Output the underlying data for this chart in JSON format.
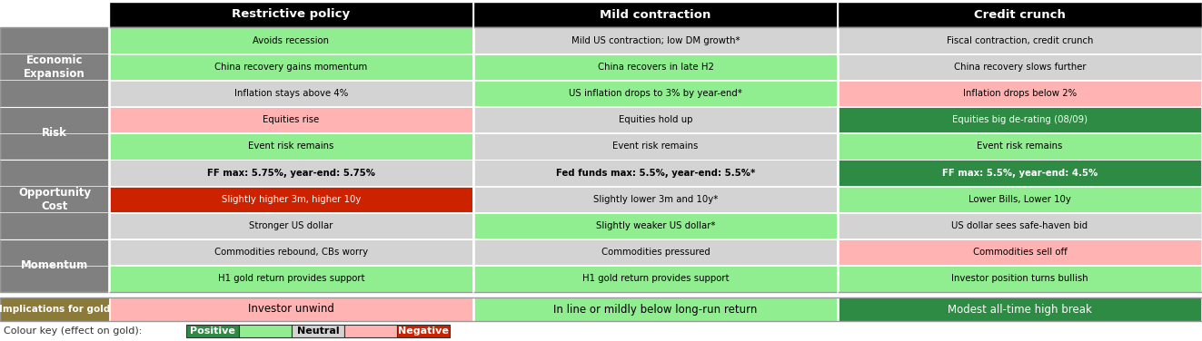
{
  "col_headers": [
    "Restrictive policy",
    "Mild contraction",
    "Credit crunch"
  ],
  "row_labels": [
    "Economic Expansion",
    "Risk",
    "Opportunity Cost",
    "Momentum"
  ],
  "implications_label": "Implications for gold",
  "cells": [
    [
      {
        "text": "Avoids recession",
        "color": "#90ee90",
        "bold": false,
        "tc": "#000000"
      },
      {
        "text": "China recovery gains momentum",
        "color": "#90ee90",
        "bold": false,
        "tc": "#000000"
      },
      {
        "text": "Inflation stays above 4%",
        "color": "#d3d3d3",
        "bold": false,
        "tc": "#000000"
      },
      {
        "text": "Equities rise",
        "color": "#ffb3b3",
        "bold": false,
        "tc": "#000000"
      },
      {
        "text": "Event risk remains",
        "color": "#90ee90",
        "bold": false,
        "tc": "#000000"
      },
      {
        "text": "FF max: 5.75%, year-end: 5.75%",
        "color": "#d3d3d3",
        "bold": true,
        "tc": "#000000"
      },
      {
        "text": "Slightly higher 3m, higher 10y",
        "color": "#cc2200",
        "bold": false,
        "tc": "#ffffff"
      },
      {
        "text": "Stronger US dollar",
        "color": "#d3d3d3",
        "bold": false,
        "tc": "#000000"
      },
      {
        "text": "Commodities rebound, CBs worry",
        "color": "#d3d3d3",
        "bold": false,
        "tc": "#000000"
      },
      {
        "text": "H1 gold return provides support",
        "color": "#90ee90",
        "bold": false,
        "tc": "#000000"
      }
    ],
    [
      {
        "text": "Mild US contraction; low DM growth*",
        "color": "#d3d3d3",
        "bold": false,
        "tc": "#000000"
      },
      {
        "text": "China recovers in late H2",
        "color": "#90ee90",
        "bold": false,
        "tc": "#000000"
      },
      {
        "text": "US inflation drops to 3% by year-end*",
        "color": "#90ee90",
        "bold": false,
        "tc": "#000000"
      },
      {
        "text": "Equities hold up",
        "color": "#d3d3d3",
        "bold": false,
        "tc": "#000000"
      },
      {
        "text": "Event risk remains",
        "color": "#d3d3d3",
        "bold": false,
        "tc": "#000000"
      },
      {
        "text": "Fed funds max: 5.5%, year-end: 5.5%*",
        "color": "#d3d3d3",
        "bold": true,
        "tc": "#000000"
      },
      {
        "text": "Slightly lower 3m and 10y*",
        "color": "#d3d3d3",
        "bold": false,
        "tc": "#000000"
      },
      {
        "text": "Slightly weaker US dollar*",
        "color": "#90ee90",
        "bold": false,
        "tc": "#000000"
      },
      {
        "text": "Commodities pressured",
        "color": "#d3d3d3",
        "bold": false,
        "tc": "#000000"
      },
      {
        "text": "H1 gold return provides support",
        "color": "#90ee90",
        "bold": false,
        "tc": "#000000"
      }
    ],
    [
      {
        "text": "Fiscal contraction, credit crunch",
        "color": "#d3d3d3",
        "bold": false,
        "tc": "#000000"
      },
      {
        "text": "China recovery slows further",
        "color": "#d3d3d3",
        "bold": false,
        "tc": "#000000"
      },
      {
        "text": "Inflation drops below 2%",
        "color": "#ffb3b3",
        "bold": false,
        "tc": "#000000"
      },
      {
        "text": "Equities big de-rating (08/09)",
        "color": "#2e8b44",
        "bold": false,
        "tc": "#ffffff"
      },
      {
        "text": "Event risk remains",
        "color": "#90ee90",
        "bold": false,
        "tc": "#000000"
      },
      {
        "text": "FF max: 5.5%, year-end: 4.5%",
        "color": "#2e8b44",
        "bold": true,
        "tc": "#ffffff"
      },
      {
        "text": "Lower Bills, Lower 10y",
        "color": "#90ee90",
        "bold": false,
        "tc": "#000000"
      },
      {
        "text": "US dollar sees safe-haven bid",
        "color": "#d3d3d3",
        "bold": false,
        "tc": "#000000"
      },
      {
        "text": "Commodities sell off",
        "color": "#ffb3b3",
        "bold": false,
        "tc": "#000000"
      },
      {
        "text": "Investor position turns bullish",
        "color": "#90ee90",
        "bold": false,
        "tc": "#000000"
      }
    ]
  ],
  "category_spans": [
    {
      "label": "Economic\nExpansion",
      "start": 0,
      "end": 3
    },
    {
      "label": "Risk",
      "start": 3,
      "end": 5
    },
    {
      "label": "Opportunity\nCost",
      "start": 5,
      "end": 8
    },
    {
      "label": "Momentum",
      "start": 8,
      "end": 10
    }
  ],
  "implications": [
    {
      "text": "Investor unwind",
      "color": "#ffb3b3",
      "tc": "#000000"
    },
    {
      "text": "In line or mildly below long-run return",
      "color": "#90ee90",
      "tc": "#000000"
    },
    {
      "text": "Modest all-time high break",
      "color": "#2e8b44",
      "tc": "#ffffff"
    }
  ],
  "colour_key": [
    {
      "label": "Positive",
      "color": "#2e8b44",
      "tc": "#ffffff"
    },
    {
      "label": "",
      "color": "#90ee90",
      "tc": "#000000"
    },
    {
      "label": "Neutral",
      "color": "#d3d3d3",
      "tc": "#000000"
    },
    {
      "label": "",
      "color": "#ffb3b3",
      "tc": "#000000"
    },
    {
      "label": "Negative",
      "color": "#cc2200",
      "tc": "#ffffff"
    }
  ]
}
